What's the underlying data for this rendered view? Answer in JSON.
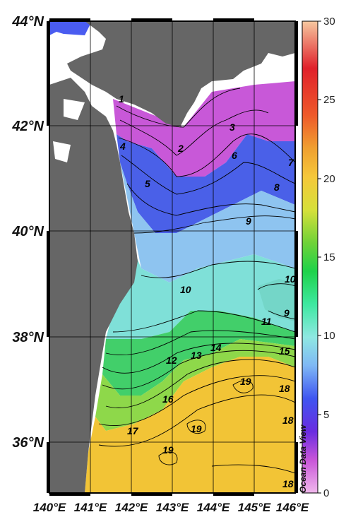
{
  "map": {
    "lat_labels": [
      "44°N",
      "42°N",
      "40°N",
      "38°N",
      "36°N"
    ],
    "lon_labels": [
      "140°E",
      "141°E",
      "142°E",
      "143°E",
      "144°E",
      "145°E",
      "146°E"
    ],
    "colorbar": {
      "ticks": [
        "30",
        "25",
        "20",
        "15",
        "10",
        "5",
        "0"
      ],
      "min": 0,
      "max": 30,
      "colors": [
        "#f0b8ec",
        "#c855d8",
        "#6a2ce0",
        "#3f55f0",
        "#7fb8f5",
        "#8fe8e2",
        "#3ee8a0",
        "#1ed24a",
        "#6fd238",
        "#d6e03a",
        "#f5c83a",
        "#f0a030",
        "#ee5a2a",
        "#e0202a",
        "#f6c8a0"
      ]
    },
    "contour_labels": [
      "1",
      "2",
      "3",
      "4",
      "5",
      "6",
      "7",
      "8",
      "9",
      "10",
      "10",
      "9",
      "11",
      "12",
      "13",
      "14",
      "15",
      "16",
      "17",
      "18",
      "19",
      "19",
      "19",
      "18",
      "18"
    ],
    "watermark": "Ocean Data View",
    "land_color": "#666666"
  }
}
